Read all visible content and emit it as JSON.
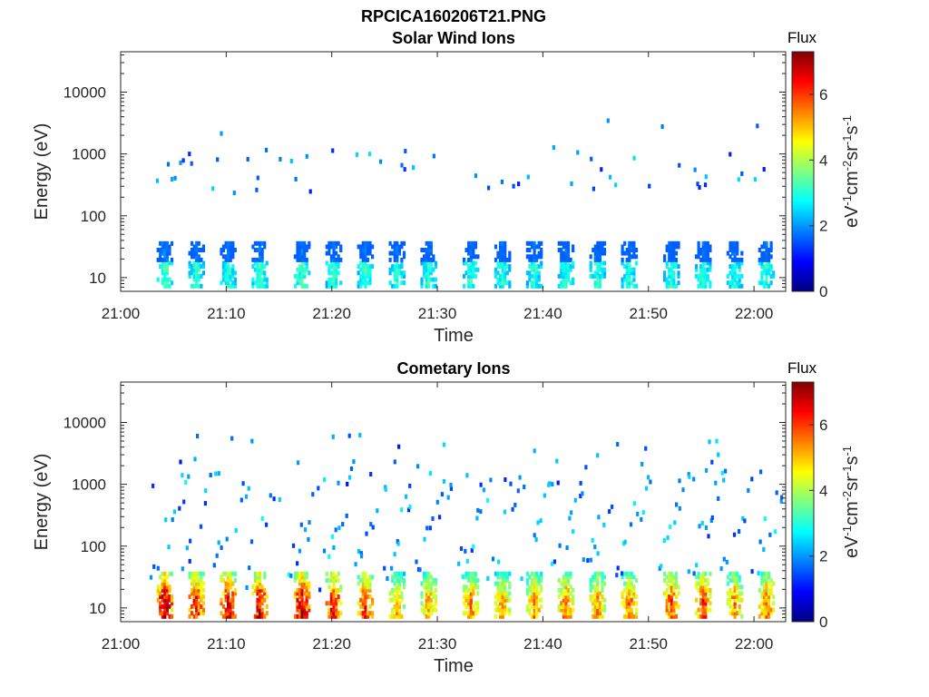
{
  "figure_title": "RPCICA160206T21.PNG",
  "colormap": [
    "#00007f",
    "#0000ff",
    "#007fff",
    "#00ffff",
    "#7fff7f",
    "#ffff00",
    "#ff7f00",
    "#ff0000",
    "#7f0000"
  ],
  "chart_data": [
    {
      "type": "heatmap",
      "title": "Solar Wind Ions",
      "xlabel": "Time",
      "ylabel": "Energy (eV)",
      "yscale": "log",
      "ylim": [
        6,
        45000
      ],
      "xlim": [
        "21:00",
        "22:03"
      ],
      "x_ticks": [
        "21:00",
        "21:10",
        "21:20",
        "21:30",
        "21:40",
        "21:50",
        "22:00"
      ],
      "y_ticks": [
        10,
        100,
        1000,
        10000
      ],
      "y_tick_labels": [
        "10",
        "100",
        "1000",
        "10000"
      ],
      "colorbar": {
        "title": "Flux",
        "label": "eV-1cm-2sr-1s-1",
        "range": [
          0,
          7.3
        ],
        "ticks": [
          0,
          2,
          4,
          6
        ]
      },
      "low_energy_bursts": [
        {
          "t": "21:04",
          "peak": 3.2
        },
        {
          "t": "21:07",
          "peak": 3.0
        },
        {
          "t": "21:10",
          "peak": 3.0
        },
        {
          "t": "21:13",
          "peak": 3.1
        },
        {
          "t": "21:17",
          "peak": 3.2
        },
        {
          "t": "21:20",
          "peak": 3.0
        },
        {
          "t": "21:23",
          "peak": 3.0
        },
        {
          "t": "21:26",
          "peak": 3.0
        },
        {
          "t": "21:29",
          "peak": 3.0
        },
        {
          "t": "21:33",
          "peak": 3.0
        },
        {
          "t": "21:36",
          "peak": 3.0
        },
        {
          "t": "21:39",
          "peak": 3.0
        },
        {
          "t": "21:42",
          "peak": 3.0
        },
        {
          "t": "21:45",
          "peak": 3.0
        },
        {
          "t": "21:48",
          "peak": 3.0
        },
        {
          "t": "21:52",
          "peak": 3.0
        },
        {
          "t": "21:55",
          "peak": 3.0
        },
        {
          "t": "21:58",
          "peak": 3.0
        },
        {
          "t": "22:01",
          "peak": 3.0
        }
      ]
    },
    {
      "type": "heatmap",
      "title": "Cometary Ions",
      "xlabel": "Time",
      "ylabel": "Energy (eV)",
      "yscale": "log",
      "ylim": [
        6,
        45000
      ],
      "xlim": [
        "21:00",
        "22:03"
      ],
      "x_ticks": [
        "21:00",
        "21:10",
        "21:20",
        "21:30",
        "21:40",
        "21:50",
        "22:00"
      ],
      "y_ticks": [
        10,
        100,
        1000,
        10000
      ],
      "y_tick_labels": [
        "10",
        "100",
        "1000",
        "10000"
      ],
      "colorbar": {
        "title": "Flux",
        "label": "eV-1cm-2sr-1s-1",
        "range": [
          0,
          7.3
        ],
        "ticks": [
          0,
          2,
          4,
          6
        ]
      },
      "low_energy_bursts": [
        {
          "t": "21:04",
          "peak": 6.8
        },
        {
          "t": "21:07",
          "peak": 6.2
        },
        {
          "t": "21:10",
          "peak": 6.5
        },
        {
          "t": "21:13",
          "peak": 6.6
        },
        {
          "t": "21:17",
          "peak": 6.8
        },
        {
          "t": "21:20",
          "peak": 6.3
        },
        {
          "t": "21:23",
          "peak": 6.0
        },
        {
          "t": "21:26",
          "peak": 5.0
        },
        {
          "t": "21:29",
          "peak": 5.2
        },
        {
          "t": "21:33",
          "peak": 5.4
        },
        {
          "t": "21:36",
          "peak": 5.1
        },
        {
          "t": "21:39",
          "peak": 5.3
        },
        {
          "t": "21:42",
          "peak": 5.5
        },
        {
          "t": "21:45",
          "peak": 5.2
        },
        {
          "t": "21:48",
          "peak": 5.5
        },
        {
          "t": "21:52",
          "peak": 5.8
        },
        {
          "t": "21:55",
          "peak": 6.0
        },
        {
          "t": "21:58",
          "peak": 5.4
        },
        {
          "t": "22:01",
          "peak": 5.6
        }
      ]
    }
  ]
}
